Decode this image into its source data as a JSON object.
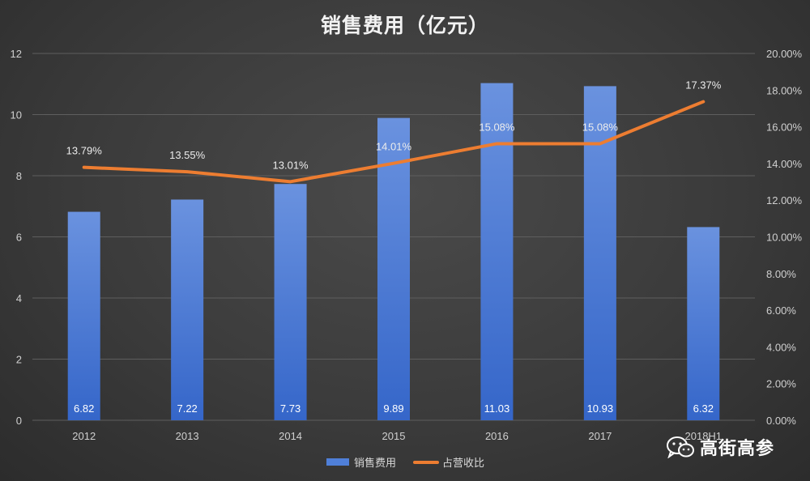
{
  "chart_data": {
    "type": "bar",
    "title": "销售费用（亿元）",
    "categories": [
      "2012",
      "2013",
      "2014",
      "2015",
      "2016",
      "2017",
      "2018H1"
    ],
    "series": [
      {
        "name": "销售费用",
        "type": "bar",
        "axis": "left",
        "color": "#4f7fd8",
        "values": [
          6.82,
          7.22,
          7.73,
          9.89,
          11.03,
          10.93,
          6.32
        ],
        "labels": [
          "6.82",
          "7.22",
          "7.73",
          "9.89",
          "11.03",
          "10.93",
          "6.32"
        ]
      },
      {
        "name": "占营收比",
        "type": "line",
        "axis": "right",
        "color": "#ed7d31",
        "values": [
          13.79,
          13.55,
          13.01,
          14.01,
          15.08,
          15.08,
          17.37
        ],
        "labels": [
          "13.79%",
          "13.55%",
          "13.01%",
          "14.01%",
          "15.08%",
          "15.08%",
          "17.37%"
        ]
      }
    ],
    "y_left": {
      "ylim": [
        0,
        12
      ],
      "ticks": [
        "0",
        "2",
        "4",
        "6",
        "8",
        "10",
        "12"
      ]
    },
    "y_right": {
      "ylim": [
        0,
        20
      ],
      "ticks": [
        "0.00%",
        "2.00%",
        "4.00%",
        "6.00%",
        "8.00%",
        "10.00%",
        "12.00%",
        "14.00%",
        "16.00%",
        "18.00%",
        "20.00%"
      ]
    },
    "grid": true,
    "legend": "bottom"
  },
  "watermark": {
    "text": "高街高参",
    "icon": "wechat-icon"
  }
}
